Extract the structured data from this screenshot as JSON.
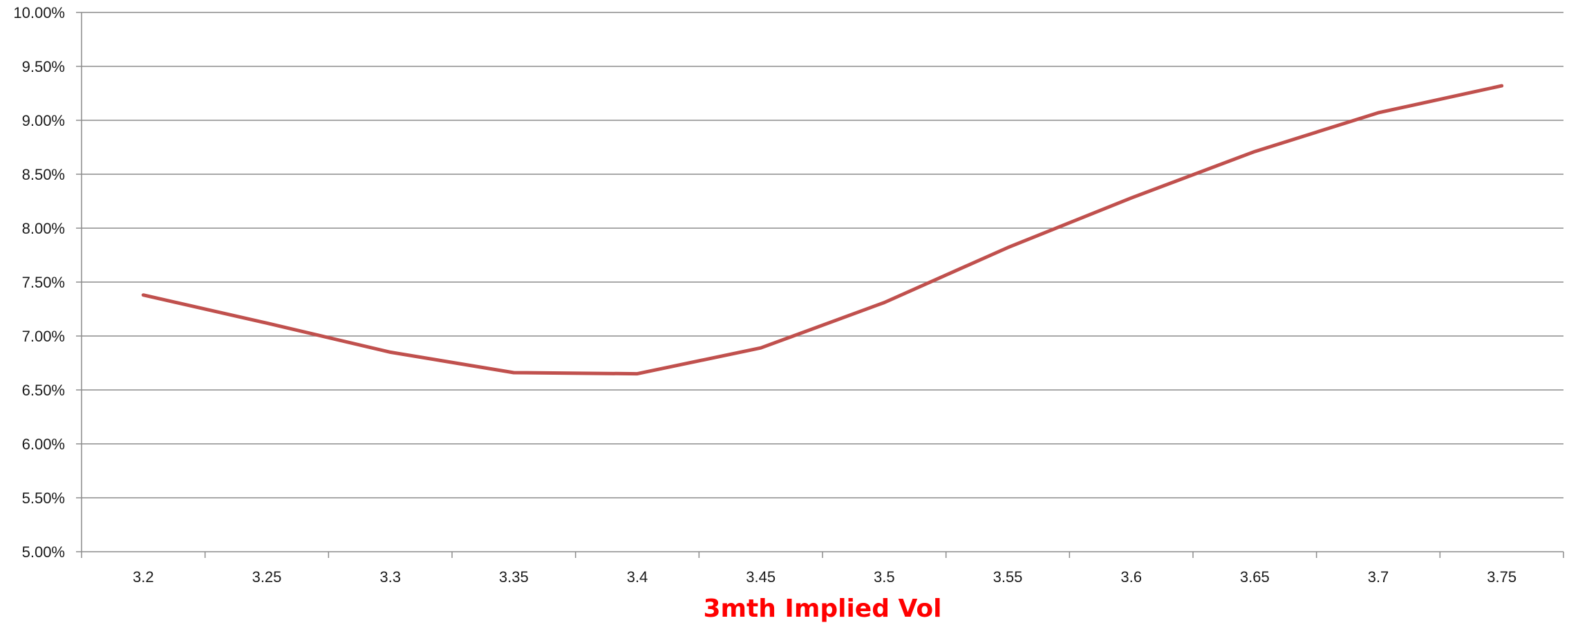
{
  "chart_data": {
    "type": "line",
    "title": "",
    "xlabel": "3mth Implied Vol",
    "ylabel": "",
    "categories": [
      "3.2",
      "3.25",
      "3.3",
      "3.35",
      "3.4",
      "3.45",
      "3.5",
      "3.55",
      "3.6",
      "3.65",
      "3.7",
      "3.75"
    ],
    "series": [
      {
        "values": [
          0.0738,
          0.0712,
          0.0685,
          0.0666,
          0.0665,
          0.0689,
          0.0731,
          0.0782,
          0.0828,
          0.0871,
          0.0907,
          0.0932
        ]
      }
    ],
    "ylim": [
      0.05,
      0.1
    ],
    "yticks": [
      0.05,
      0.055,
      0.06,
      0.065,
      0.07,
      0.075,
      0.08,
      0.085,
      0.09,
      0.095,
      0.1
    ],
    "ytick_labels": [
      "5.00%",
      "5.50%",
      "6.00%",
      "6.50%",
      "7.00%",
      "7.50%",
      "8.00%",
      "8.50%",
      "9.00%",
      "9.50%",
      "10.00%"
    ],
    "grid": "horizontal",
    "legend": "none"
  },
  "colors": {
    "line": "#c0504d",
    "xlabel": "#ff0000",
    "grid": "#8c8c8c",
    "axis": "#8c8c8c"
  }
}
